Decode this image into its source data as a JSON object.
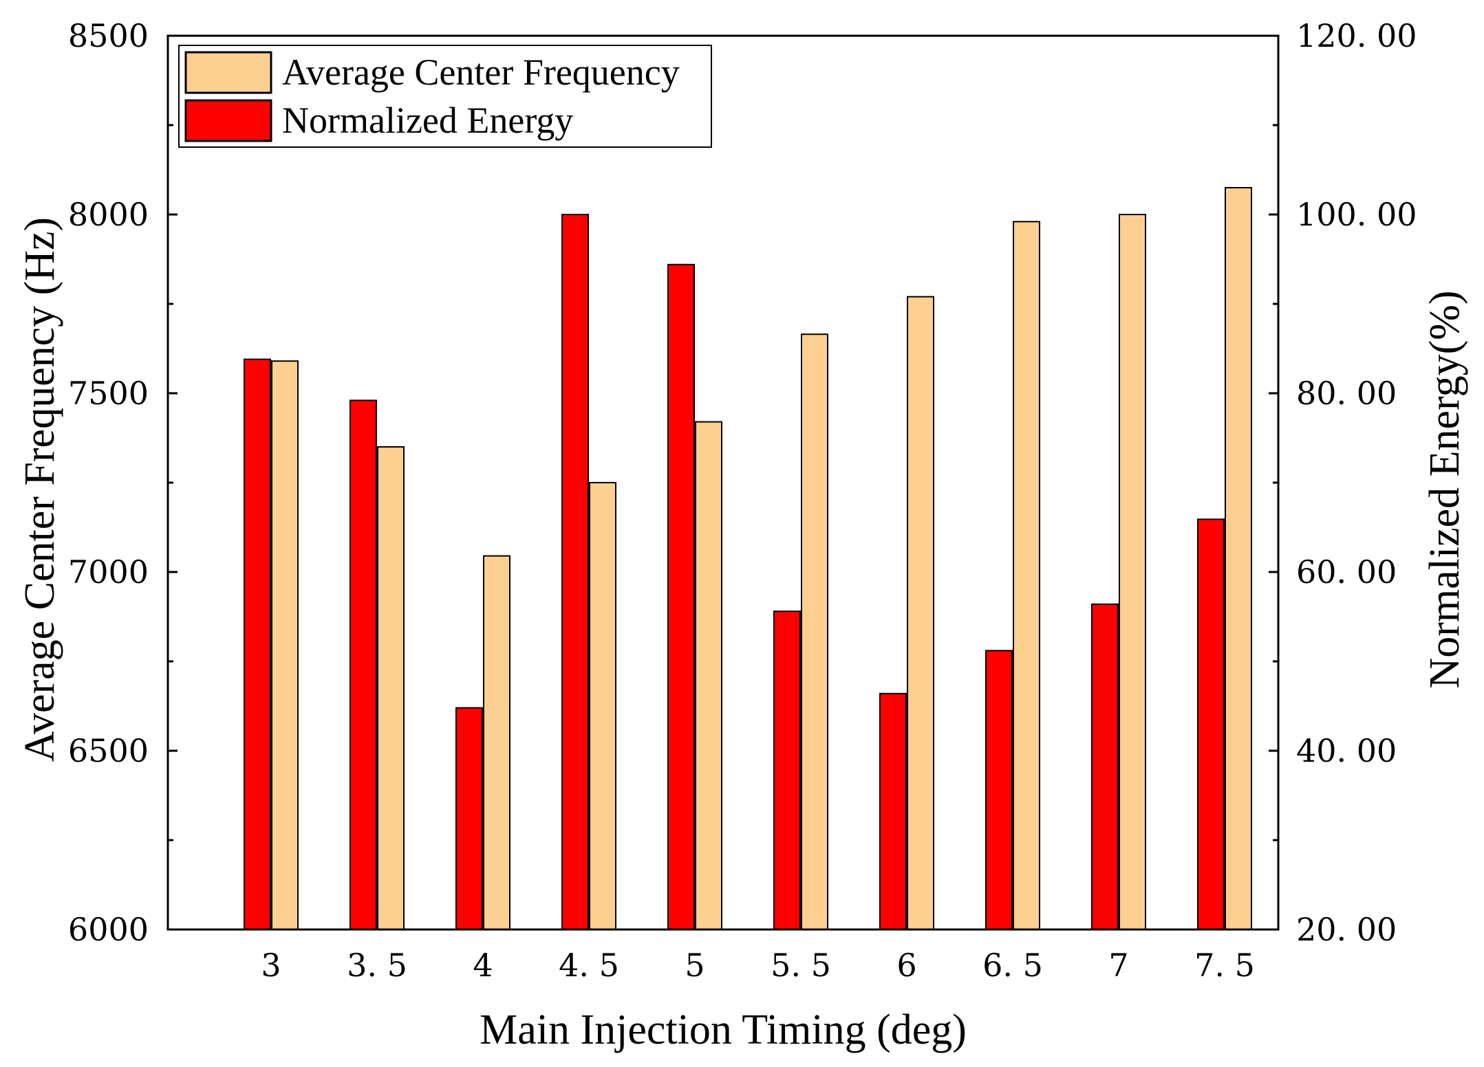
{
  "chart_data": {
    "type": "bar",
    "title": "",
    "xlabel": "Main Injection Timing (deg)",
    "ylabel_left": "Average Center Frequency (Hz)",
    "ylabel_right": "Normalized Energy(%)",
    "categories": [
      "3",
      "3.5",
      "4",
      "4.5",
      "5",
      "5.5",
      "6",
      "6.5",
      "7",
      "7.5"
    ],
    "category_display": [
      "3",
      "3. 5",
      "4",
      "4. 5",
      "5",
      "5. 5",
      "6",
      "6. 5",
      "7",
      "7. 5"
    ],
    "ylim_left": [
      6000,
      8500
    ],
    "yticks_left": [
      6000,
      6500,
      7000,
      7500,
      8000,
      8500
    ],
    "yticks_left_display": [
      "6000",
      "6500",
      "7000",
      "7500",
      "8000",
      "8500"
    ],
    "ylim_right": [
      20,
      120
    ],
    "yticks_right": [
      20,
      40,
      60,
      80,
      100,
      120
    ],
    "yticks_right_display": [
      "20. 00",
      "40. 00",
      "60. 00",
      "80. 00",
      "100. 00",
      "120. 00"
    ],
    "grid": false,
    "legend_position": "top-left",
    "series": [
      {
        "name": "Normalized Energy",
        "axis": "right",
        "color": "#ff0000",
        "values": [
          83.8,
          79.2,
          44.8,
          100.0,
          94.4,
          55.6,
          46.4,
          51.2,
          56.4,
          65.9
        ]
      },
      {
        "name": "Average Center Frequency",
        "axis": "left",
        "color": "#fdd092",
        "values": [
          7590,
          7350,
          7045,
          7250,
          7420,
          7665,
          7770,
          7980,
          8000,
          8075
        ]
      }
    ],
    "legend": [
      {
        "label": "Average Center Frequency",
        "color": "#fdd092"
      },
      {
        "label": "Normalized Energy",
        "color": "#ff0000"
      }
    ]
  }
}
